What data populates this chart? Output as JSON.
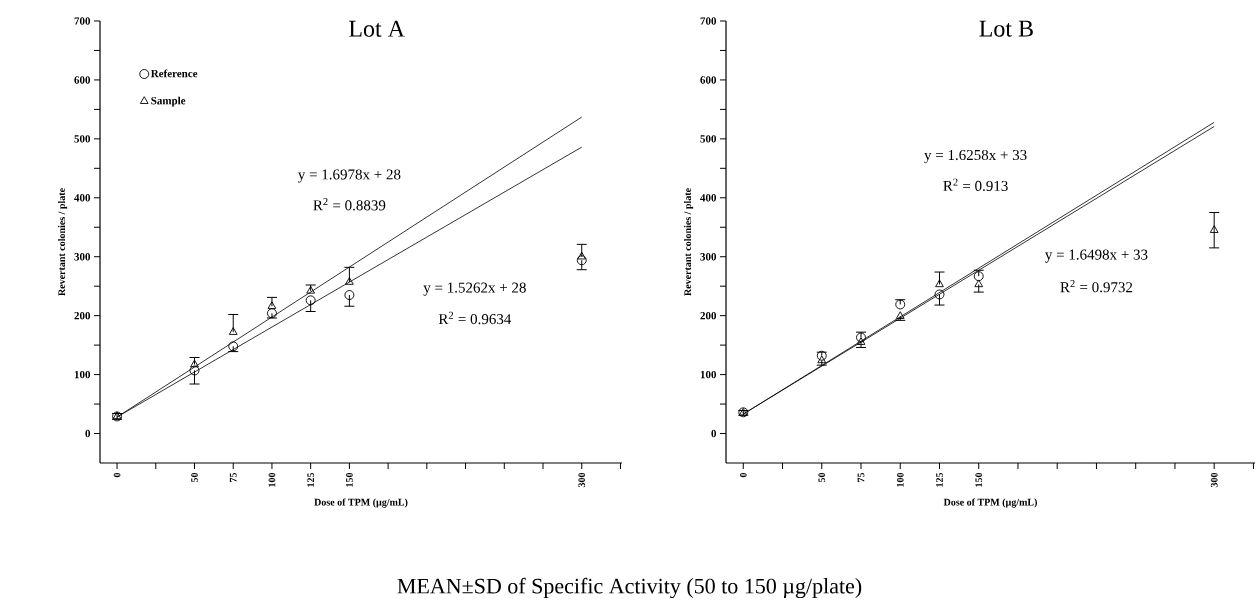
{
  "chart_data": [
    {
      "type": "scatter",
      "title": "Lot A",
      "xlabel": "Dose of TPM (µg/mL)",
      "ylabel": "Revertant colonies / plate",
      "xlim": [
        -11,
        326
      ],
      "ylim": [
        -50,
        700
      ],
      "xticks": [
        0,
        {
          "value": 25,
          "label": null
        },
        50,
        75,
        100,
        125,
        150,
        {
          "value": 175,
          "label": null
        },
        {
          "value": 200,
          "label": null
        },
        {
          "value": 225,
          "label": null
        },
        {
          "value": 250,
          "label": null
        },
        {
          "value": 275,
          "label": null
        },
        300,
        {
          "value": 325,
          "label": null
        }
      ],
      "yticks": [
        0,
        {
          "value": 50,
          "label": null
        },
        100,
        {
          "value": 150,
          "label": null
        },
        200,
        {
          "value": 250,
          "label": null
        },
        300,
        {
          "value": 350,
          "label": null
        },
        400,
        {
          "value": 450,
          "label": null
        },
        500,
        {
          "value": 550,
          "label": null
        },
        600,
        {
          "value": 650,
          "label": null
        },
        700
      ],
      "legend": "top left",
      "series": [
        {
          "name": "Reference",
          "marker": "circle",
          "color": "#000000",
          "x": [
            0,
            50,
            75,
            100,
            125,
            150,
            300
          ],
          "values": [
            29,
            107,
            148,
            204,
            226,
            235,
            294
          ],
          "errors": [
            [
              24,
              29
            ],
            [
              84,
              107
            ],
            [
              139,
              148
            ],
            [
              196,
              204
            ],
            [
              207,
              226
            ],
            [
              216,
              235
            ],
            [
              278,
              294
            ]
          ]
        },
        {
          "name": "Sample",
          "marker": "triangle",
          "color": "#000000",
          "x": [
            0,
            50,
            75,
            100,
            125,
            150,
            300
          ],
          "values": [
            29,
            117,
            172,
            216,
            242,
            257,
            300
          ],
          "errors": [
            [
              29,
              34
            ],
            [
              117,
              129
            ],
            [
              172,
              202
            ],
            [
              216,
              231
            ],
            [
              242,
              252
            ],
            [
              257,
              282
            ],
            [
              300,
              321
            ]
          ]
        },
        {
          "type": "line",
          "marker": "none",
          "color": "#000000",
          "x": [
            0,
            300
          ],
          "values": [
            28,
            537
          ]
        },
        {
          "type": "line",
          "marker": "none",
          "color": "#000000",
          "x": [
            0,
            300
          ],
          "values": [
            28,
            486
          ]
        }
      ],
      "annotations": [
        "y = 1.6978x + 28",
        "R$^{2}$ = 0.8839",
        "y = 1.5262x + 28",
        "R$^{2}$ = 0.9634",
        "MEAN±SD of Specific Activity (50 to 150 µg/plate)"
      ]
    },
    {
      "type": "scatter",
      "title": "Lot B",
      "xlabel": "Dose of TPM (µg/mL)",
      "ylabel": "Revertant colonies / plate",
      "xlim": [
        -11,
        326
      ],
      "ylim": [
        -50,
        700
      ],
      "xticks": [
        0,
        {
          "value": 25,
          "label": null
        },
        50,
        75,
        100,
        125,
        150,
        {
          "value": 175,
          "label": null
        },
        {
          "value": 200,
          "label": null
        },
        {
          "value": 225,
          "label": null
        },
        {
          "value": 250,
          "label": null
        },
        {
          "value": 275,
          "label": null
        },
        300,
        {
          "value": 325,
          "label": null
        }
      ],
      "yticks": [
        0,
        {
          "value": 50,
          "label": null
        },
        100,
        {
          "value": 150,
          "label": null
        },
        200,
        {
          "value": 250,
          "label": null
        },
        300,
        {
          "value": 350,
          "label": null
        },
        400,
        {
          "value": 450,
          "label": null
        },
        500,
        {
          "value": 550,
          "label": null
        },
        600,
        {
          "value": 650,
          "label": null
        },
        700
      ],
      "series": [
        {
          "marker": "circle",
          "color": "#000000",
          "x": [
            0,
            50,
            75,
            100,
            125,
            150
          ],
          "values": [
            36,
            132,
            163,
            219,
            236,
            267
          ],
          "errors": [
            [
              31,
              36
            ],
            [
              132,
              138
            ],
            [
              163,
              172
            ],
            [
              219,
              227
            ],
            [
              218,
              236
            ],
            [
              267,
              277
            ]
          ]
        },
        {
          "marker": "triangle",
          "color": "#000000",
          "x": [
            0,
            50,
            75,
            100,
            125,
            150,
            300
          ],
          "values": [
            35,
            124,
            155,
            199,
            253,
            253,
            345
          ],
          "errors": [
            [
              35,
              39
            ],
            [
              116,
              124
            ],
            [
              146,
              155
            ],
            [
              192,
              199
            ],
            [
              253,
              274
            ],
            [
              240,
              253
            ],
            [
              315,
              375
            ]
          ]
        },
        {
          "type": "line",
          "marker": "none",
          "color": "#000000",
          "x": [
            0,
            300
          ],
          "values": [
            33,
            521
          ]
        },
        {
          "type": "line",
          "marker": "none",
          "color": "#000000",
          "x": [
            0,
            300
          ],
          "values": [
            33,
            528
          ]
        }
      ],
      "annotations": [
        "y = 1.6258x + 33",
        "R$^{2}$ = 0.913",
        "y = 1.6498x + 33",
        "R$^{2}$ = 0.9732"
      ]
    }
  ]
}
